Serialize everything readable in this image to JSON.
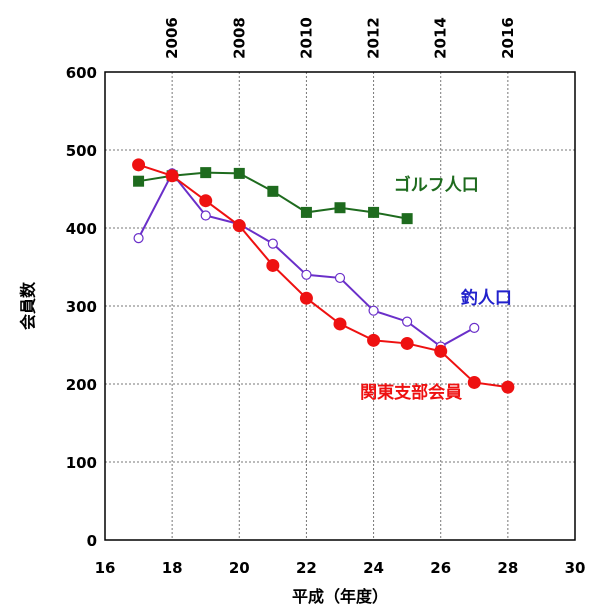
{
  "chart_data": {
    "type": "line",
    "xlabel": "平成（年度）",
    "ylabel": "会員数",
    "xlim": [
      16,
      30
    ],
    "ylim": [
      0,
      600
    ],
    "x_ticks": [
      16,
      18,
      20,
      22,
      24,
      26,
      28,
      30
    ],
    "y_ticks": [
      0,
      100,
      200,
      300,
      400,
      500,
      600
    ],
    "x2_ticks": [
      {
        "x": 18,
        "label": "2006"
      },
      {
        "x": 20,
        "label": "2008"
      },
      {
        "x": 22,
        "label": "2010"
      },
      {
        "x": 24,
        "label": "2012"
      },
      {
        "x": 26,
        "label": "2014"
      },
      {
        "x": 28,
        "label": "2016"
      }
    ],
    "grid": true,
    "series": [
      {
        "name": "ゴルフ人口",
        "color": "#1e6b1e",
        "marker": "square",
        "label_at": {
          "x": 24.6,
          "y": 448
        },
        "points": [
          [
            17,
            460
          ],
          [
            18,
            467
          ],
          [
            19,
            471
          ],
          [
            20,
            470
          ],
          [
            21,
            447
          ],
          [
            22,
            420
          ],
          [
            23,
            426
          ],
          [
            24,
            420
          ],
          [
            25,
            412
          ]
        ]
      },
      {
        "name": "釣人口",
        "color": "#6a2fc9",
        "label_color": "#2222cc",
        "marker": "open-circle",
        "label_at": {
          "x": 26.6,
          "y": 303
        },
        "points": [
          [
            17,
            387
          ],
          [
            18,
            470
          ],
          [
            19,
            416
          ],
          [
            20,
            405
          ],
          [
            21,
            380
          ],
          [
            22,
            340
          ],
          [
            23,
            336
          ],
          [
            24,
            294
          ],
          [
            25,
            280
          ],
          [
            26,
            248
          ],
          [
            27,
            272
          ]
        ]
      },
      {
        "name": "関東支部会員",
        "color": "#ee1111",
        "marker": "filled-circle",
        "label_at": {
          "x": 23.6,
          "y": 182
        },
        "points": [
          [
            17,
            481
          ],
          [
            18,
            467
          ],
          [
            19,
            435
          ],
          [
            20,
            403
          ],
          [
            21,
            352
          ],
          [
            22,
            310
          ],
          [
            23,
            277
          ],
          [
            24,
            256
          ],
          [
            25,
            252
          ],
          [
            26,
            242
          ],
          [
            27,
            202
          ],
          [
            28,
            196
          ]
        ]
      }
    ]
  }
}
